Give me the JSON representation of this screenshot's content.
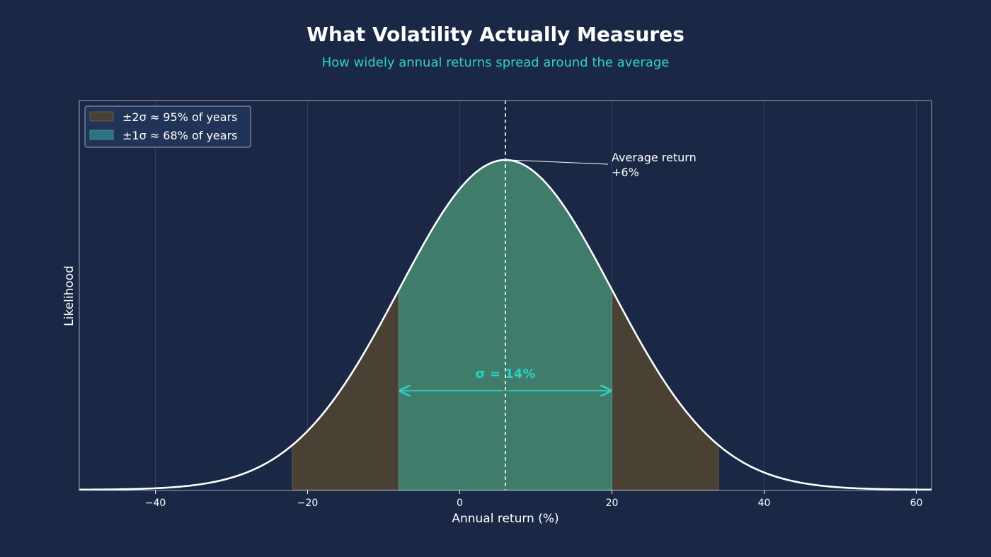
{
  "chart_data": {
    "type": "area",
    "title": "What Volatility Actually Measures",
    "subtitle": "How widely annual returns spread around the average",
    "xlabel": "Annual return (%)",
    "ylabel": "Likelihood",
    "xlim": [
      -50,
      62
    ],
    "xticks": [
      -40,
      -20,
      0,
      20,
      40,
      60
    ],
    "xtick_labels": [
      "−40",
      "−20",
      "0",
      "20",
      "40",
      "60"
    ],
    "mean": 6,
    "sigma": 14,
    "grid": true,
    "legend_position": "top-left",
    "legend": [
      {
        "label": "±2σ  ≈ 95% of years",
        "color": "#4a4035"
      },
      {
        "label": "±1σ  ≈ 68% of years",
        "color": "#2a7480"
      }
    ],
    "bands": [
      {
        "from": -22,
        "to": 34,
        "color": "#4a4135"
      },
      {
        "from": -8,
        "to": 20,
        "color": "#3f7c6c"
      }
    ],
    "annotations": {
      "mean_label_line1": "Average return",
      "mean_label_line2": "+6%",
      "sigma_label": "σ = 14%"
    },
    "colors": {
      "background": "#1b2845",
      "curve": "#ffffff",
      "accent": "#2ed3c0",
      "subtitle": "#2ed3c0"
    }
  }
}
